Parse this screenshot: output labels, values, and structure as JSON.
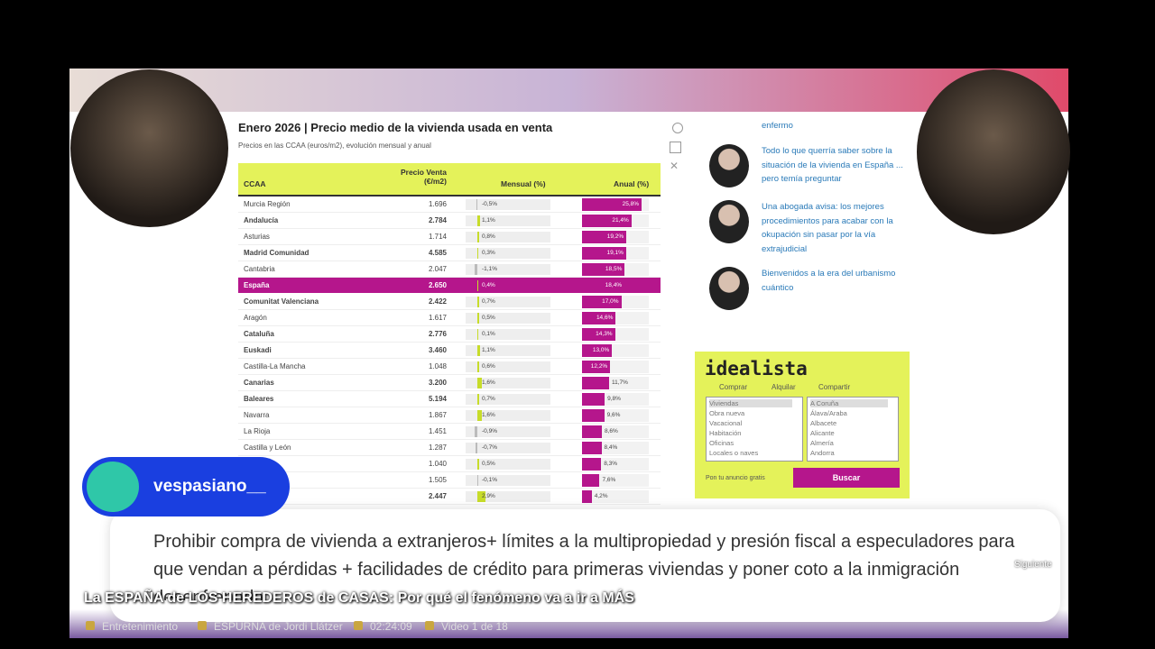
{
  "video": {
    "title": "La ESPAÑA de LOS HEREDEROS de CASAS: Por qué el fenómeno va a ir a MÁS",
    "category": "Entretenimiento",
    "channel": "ESPURNA de Jordi Llátzer",
    "duration": "02:24:09",
    "position": "Video 1 de 18",
    "next": "Siguiente"
  },
  "chat": {
    "user": "vespasiano__",
    "message": "Prohibir compra de vivienda a extranjeros+ límites a la multipropiedad y presión fiscal a especuladores para que vendan a pérdidas + facilidades de crédito para primeras viviendas y poner coto a la inmigración desenfrenada"
  },
  "article": {
    "title": "Enero 2026 | Precio medio de la vivienda usada en venta",
    "subtitle": "Precios en las CCAA (euros/m2), evolución mensual y anual",
    "table": {
      "headers": [
        "CCAA",
        "Precio Venta (€/m2)",
        "Mensual (%)",
        "Anual (%)"
      ],
      "highlight": 5,
      "rows": [
        {
          "name": "Murcia Región",
          "price": "1.696",
          "monthly": {
            "value": -0.5,
            "label": "-0,5%"
          },
          "annual": {
            "value": 25.8,
            "label": "25,8%"
          },
          "bold": false
        },
        {
          "name": "Andalucía",
          "price": "2.784",
          "monthly": {
            "value": 1.1,
            "label": "1,1%"
          },
          "annual": {
            "value": 21.4,
            "label": "21,4%"
          },
          "bold": true
        },
        {
          "name": "Asturias",
          "price": "1.714",
          "monthly": {
            "value": 0.8,
            "label": "0,8%"
          },
          "annual": {
            "value": 19.2,
            "label": "19,2%"
          },
          "bold": false
        },
        {
          "name": "Madrid Comunidad",
          "price": "4.585",
          "monthly": {
            "value": 0.3,
            "label": "0,3%"
          },
          "annual": {
            "value": 19.1,
            "label": "19,1%"
          },
          "bold": true
        },
        {
          "name": "Cantabria",
          "price": "2.047",
          "monthly": {
            "value": -1.1,
            "label": "-1,1%"
          },
          "annual": {
            "value": 18.5,
            "label": "18,5%"
          },
          "bold": false
        },
        {
          "name": "España",
          "price": "2.650",
          "monthly": {
            "value": 0.4,
            "label": "0,4%"
          },
          "annual": {
            "value": 18.4,
            "label": "18,4%"
          },
          "bold": true
        },
        {
          "name": "Comunitat Valenciana",
          "price": "2.422",
          "monthly": {
            "value": 0.7,
            "label": "0,7%"
          },
          "annual": {
            "value": 17.0,
            "label": "17,0%"
          },
          "bold": true
        },
        {
          "name": "Aragón",
          "price": "1.617",
          "monthly": {
            "value": 0.5,
            "label": "0,5%"
          },
          "annual": {
            "value": 14.6,
            "label": "14,6%"
          },
          "bold": false
        },
        {
          "name": "Cataluña",
          "price": "2.776",
          "monthly": {
            "value": 0.1,
            "label": "0,1%"
          },
          "annual": {
            "value": 14.3,
            "label": "14,3%"
          },
          "bold": true
        },
        {
          "name": "Euskadi",
          "price": "3.460",
          "monthly": {
            "value": 1.1,
            "label": "1,1%"
          },
          "annual": {
            "value": 13.0,
            "label": "13,0%"
          },
          "bold": true
        },
        {
          "name": "Castilla-La Mancha",
          "price": "1.048",
          "monthly": {
            "value": 0.6,
            "label": "0,6%"
          },
          "annual": {
            "value": 12.2,
            "label": "12,2%"
          },
          "bold": false
        },
        {
          "name": "Canarias",
          "price": "3.200",
          "monthly": {
            "value": 1.6,
            "label": "1,6%"
          },
          "annual": {
            "value": 11.7,
            "label": "11,7%"
          },
          "bold": true
        },
        {
          "name": "Baleares",
          "price": "5.194",
          "monthly": {
            "value": 0.7,
            "label": "0,7%"
          },
          "annual": {
            "value": 9.8,
            "label": "9,8%"
          },
          "bold": true
        },
        {
          "name": "Navarra",
          "price": "1.867",
          "monthly": {
            "value": 1.6,
            "label": "1,6%"
          },
          "annual": {
            "value": 9.6,
            "label": "9,6%"
          },
          "bold": false
        },
        {
          "name": "La Rioja",
          "price": "1.451",
          "monthly": {
            "value": -0.9,
            "label": "-0,9%"
          },
          "annual": {
            "value": 8.6,
            "label": "8,6%"
          },
          "bold": false
        },
        {
          "name": "Castilla y León",
          "price": "1.287",
          "monthly": {
            "value": -0.7,
            "label": "-0,7%"
          },
          "annual": {
            "value": 8.4,
            "label": "8,4%"
          },
          "bold": false
        },
        {
          "name": null,
          "price": "1.040",
          "monthly": {
            "value": 0.5,
            "label": "0,5%"
          },
          "annual": {
            "value": 8.3,
            "label": "8,3%"
          },
          "bold": false
        },
        {
          "name": null,
          "price": "1.505",
          "monthly": {
            "value": -0.1,
            "label": "-0,1%"
          },
          "annual": {
            "value": 7.6,
            "label": "7,6%"
          },
          "bold": false
        },
        {
          "name": null,
          "price": "2.447",
          "monthly": {
            "value": 2.9,
            "label": "2,9%"
          },
          "annual": {
            "value": 4.2,
            "label": "4,2%"
          },
          "bold": true
        }
      ]
    }
  },
  "sidebar": {
    "items": [
      "enfermo",
      "Todo lo que querría saber sobre la situación de la vivienda en España ... pero temía preguntar",
      "Una abogada avisa: los mejores procedimientos para acabar con la okupación sin pasar por la vía extrajudicial",
      "Bienvenidos a la era del urbanismo cuántico"
    ]
  },
  "widget": {
    "logo": "idealista",
    "options": [
      "Comprar",
      "Alquilar",
      "Compartir"
    ],
    "types": [
      "Viviendas",
      "Obra nueva",
      "Vacacional",
      "Habitación",
      "Oficinas",
      "Locales o naves"
    ],
    "places": [
      "A Coruña",
      "Álava/Araba",
      "Albacete",
      "Alicante",
      "Almería",
      "Andorra"
    ],
    "link": "Pon tu anuncio gratis",
    "button": "Buscar"
  }
}
